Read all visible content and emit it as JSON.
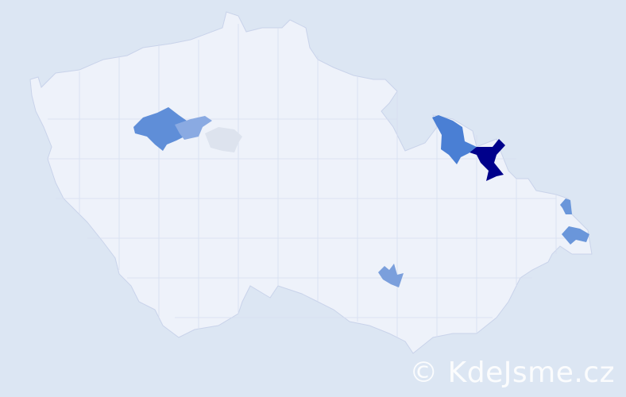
{
  "map": {
    "background": "#dce6f3",
    "land_color": "#eef2fa",
    "border_color": "#ffffff",
    "highlighted_regions": [
      {
        "color": "#00008b"
      },
      {
        "color": "#4a7fd4"
      },
      {
        "color": "#5f8ed8"
      },
      {
        "color": "#8aaae2"
      },
      {
        "color": "#dde3ee"
      },
      {
        "color": "#7b9fdc"
      },
      {
        "color": "#6a96da"
      },
      {
        "color": "#6a96da"
      }
    ]
  },
  "watermark": {
    "text": "© KdeJsme.cz"
  }
}
